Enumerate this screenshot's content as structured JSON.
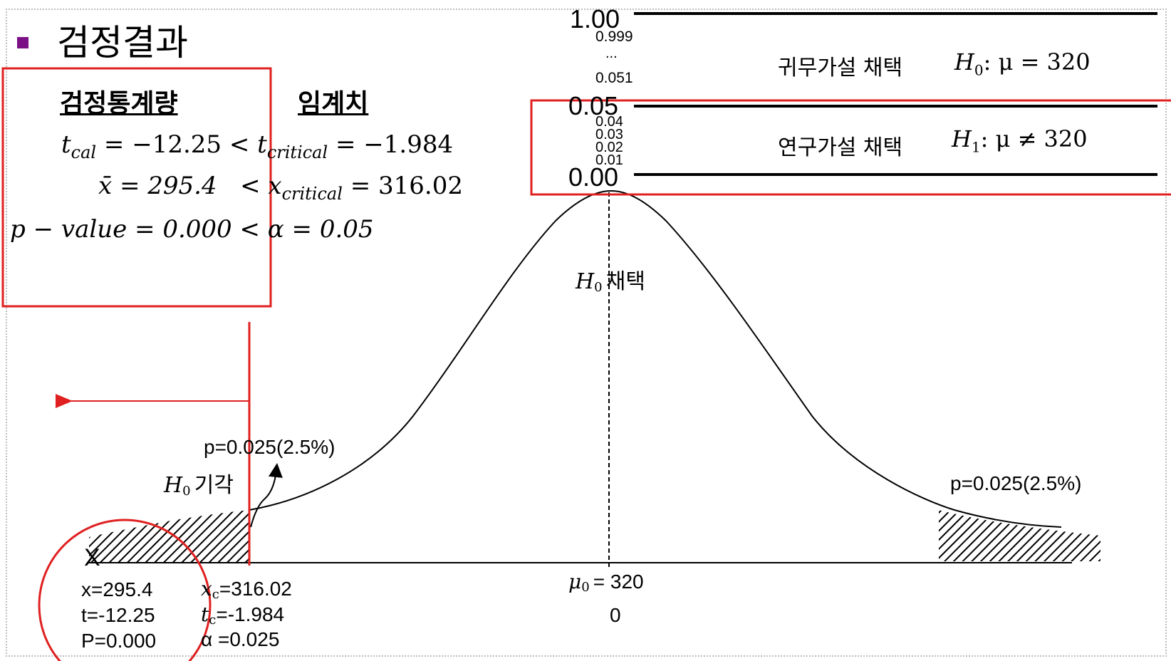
{
  "slide": {
    "title": "검정결과",
    "headers": {
      "test_statistic": "검정통계량",
      "critical_value": "임계치"
    },
    "equations": {
      "t_line": {
        "lhs_var": "t",
        "lhs_sub": "cal",
        "lhs_val": "= −12.25 <",
        "rhs_var": "t",
        "rhs_sub": "critical",
        "rhs_val": "= −1.984"
      },
      "x_line": {
        "lhs": "x̄ = 295.4",
        "op": "<",
        "rhs_var": "x",
        "rhs_sub": "critical",
        "rhs_val": "= 316.02"
      },
      "p_line": "p − value = 0.000 < α = 0.05"
    }
  },
  "scale_bar": {
    "ticks": {
      "top": "1.00",
      "t999": "0.999",
      "dots": "...",
      "t051": "0.051",
      "mid": "0.05",
      "t04": "0.04",
      "t03": "0.03",
      "t02": "0.02",
      "t01": "0.01",
      "bottom": "0.00"
    },
    "retain": {
      "label": "귀무가설 채택",
      "hyp_var": "H",
      "hyp_sub": "0",
      "hyp_rest": ": μ = 320"
    },
    "reject": {
      "label": "연구가설 채택",
      "hyp_var": "H",
      "hyp_sub": "1",
      "hyp_rest": ": μ ≠ 320"
    }
  },
  "chart_data": {
    "type": "diagram",
    "curve": "normal",
    "mu0": 320,
    "mu0_label": "= 320",
    "mu0_var": "μ",
    "mu0_sub": "0",
    "center_z": "0",
    "accept_label": {
      "var": "H",
      "sub": "0",
      "text": "채택"
    },
    "reject_label": {
      "var": "H",
      "sub": "0",
      "text": "기각"
    },
    "left_tail_p": "p=0.025(2.5%)",
    "right_tail_p": "p=0.025(2.5%)",
    "observed": {
      "marker": "X",
      "x": "x=295.4",
      "t": "t=-12.25",
      "P": "P=0.000"
    },
    "critical": {
      "x_var": "x",
      "x_sub": "c",
      "x_val": "=316.02",
      "t_var": "t",
      "t_sub": "c",
      "t_val": "=-1.984",
      "alpha": "α =0.025"
    }
  },
  "colors": {
    "highlight": "#e02020",
    "bullet": "#7a0f86",
    "line": "#000000"
  }
}
